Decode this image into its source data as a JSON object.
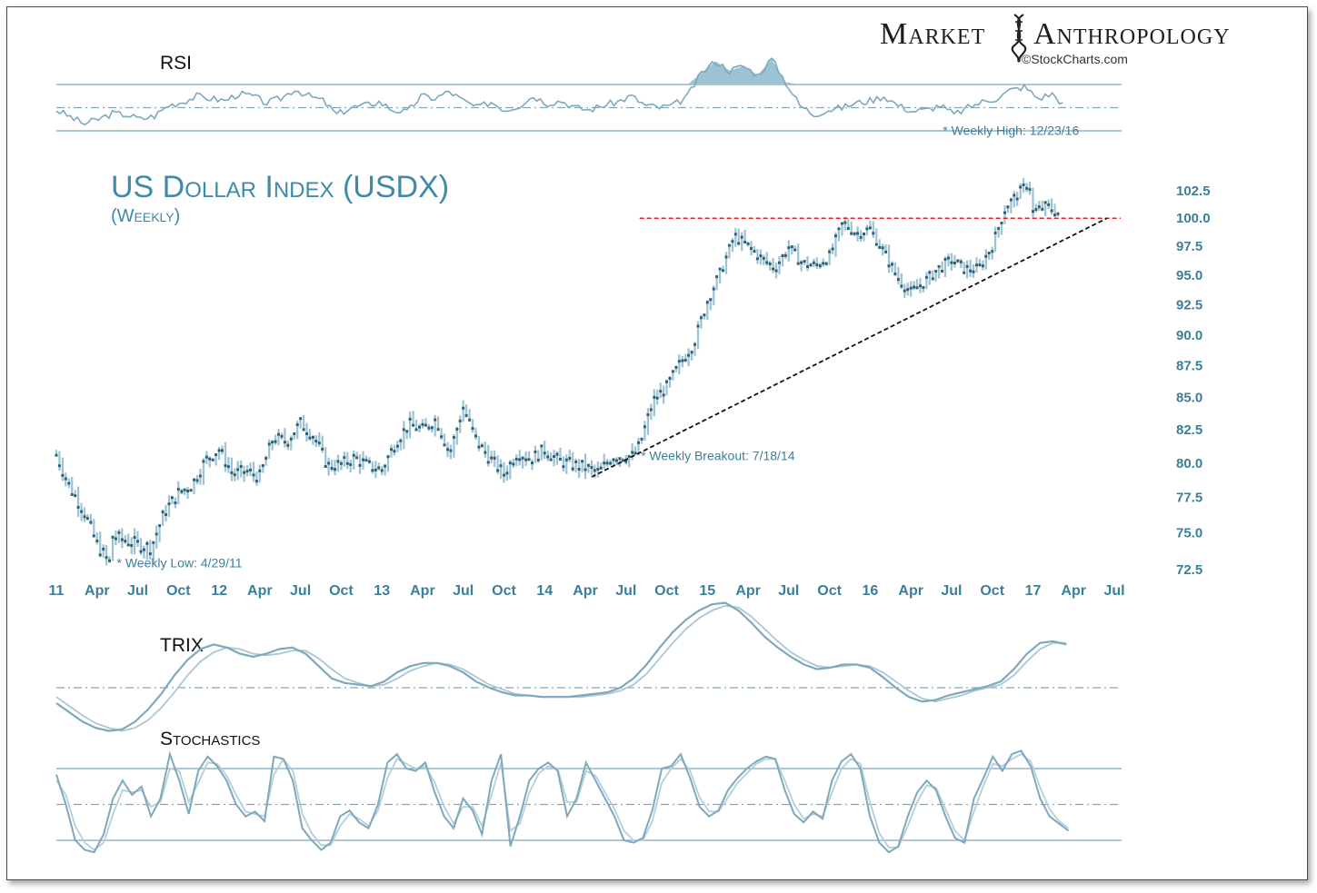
{
  "brand": {
    "left": "Market",
    "right": "Anthropology",
    "source": "©StockCharts.com",
    "icon": "dna-helix-icon"
  },
  "colors": {
    "line": "#7fa8bc",
    "accent": "#3a7f99",
    "resistance": "#e02020",
    "trendline": "#111111",
    "fill": "#9cc3d4"
  },
  "chart_data": [
    {
      "type": "line",
      "title": "US Dollar Index (USDX)",
      "subtitle": "(Weekly)",
      "y_ticks": [
        "102.5",
        "100.0",
        "97.5",
        "95.0",
        "92.5",
        "90.0",
        "87.5",
        "85.0",
        "82.5",
        "80.0",
        "77.5",
        "75.0",
        "72.5"
      ],
      "y_values": [
        102.5,
        100,
        97.5,
        95,
        92.5,
        90,
        87.5,
        85,
        82.5,
        80,
        77.5,
        75,
        72.5
      ],
      "ylim": [
        72.5,
        102.5
      ],
      "x_ticks": [
        "11",
        "Apr",
        "Jul",
        "Oct",
        "12",
        "Apr",
        "Jul",
        "Oct",
        "13",
        "Apr",
        "Jul",
        "Oct",
        "14",
        "Apr",
        "Jul",
        "Oct",
        "15",
        "Apr",
        "Jul",
        "Oct",
        "16",
        "Apr",
        "Jul",
        "Oct",
        "17",
        "Apr",
        "Jul"
      ],
      "x_tick_dates": [
        "2011-01",
        "2011-04",
        "2011-07",
        "2011-10",
        "2012-01",
        "2012-04",
        "2012-07",
        "2012-10",
        "2013-01",
        "2013-04",
        "2013-07",
        "2013-10",
        "2014-01",
        "2014-04",
        "2014-07",
        "2014-10",
        "2015-01",
        "2015-04",
        "2015-07",
        "2015-10",
        "2016-01",
        "2016-04",
        "2016-07",
        "2016-10",
        "2017-01",
        "2017-04",
        "2017-07"
      ],
      "series": [
        {
          "points": [
            [
              "2011-01",
              80.6
            ],
            [
              "2011-02",
              78.2
            ],
            [
              "2011-03",
              76.6
            ],
            [
              "2011-04",
              74.2
            ],
            [
              "2011-04-29",
              72.9
            ],
            [
              "2011-05",
              74.8
            ],
            [
              "2011-06",
              74.5
            ],
            [
              "2011-07",
              74.2
            ],
            [
              "2011-08",
              74.0
            ],
            [
              "2011-09",
              76.5
            ],
            [
              "2011-10",
              77.8
            ],
            [
              "2011-11",
              78.4
            ],
            [
              "2011-12",
              80.2
            ],
            [
              "2012-01",
              81.0
            ],
            [
              "2012-02",
              79.2
            ],
            [
              "2012-03",
              79.4
            ],
            [
              "2012-04",
              79.0
            ],
            [
              "2012-05",
              81.9
            ],
            [
              "2012-06",
              81.6
            ],
            [
              "2012-07",
              83.0
            ],
            [
              "2012-08",
              82.0
            ],
            [
              "2012-09",
              79.8
            ],
            [
              "2012-10",
              79.9
            ],
            [
              "2012-11",
              80.4
            ],
            [
              "2012-12",
              79.8
            ],
            [
              "2013-01",
              79.5
            ],
            [
              "2013-02",
              81.5
            ],
            [
              "2013-03",
              82.9
            ],
            [
              "2013-04",
              82.5
            ],
            [
              "2013-05",
              83.3
            ],
            [
              "2013-06",
              80.7
            ],
            [
              "2013-07",
              84.2
            ],
            [
              "2013-08",
              81.6
            ],
            [
              "2013-09",
              80.3
            ],
            [
              "2013-10",
              79.2
            ],
            [
              "2013-11",
              80.8
            ],
            [
              "2013-12",
              80.3
            ],
            [
              "2014-01",
              81.0
            ],
            [
              "2014-02",
              80.2
            ],
            [
              "2014-03",
              79.9
            ],
            [
              "2014-04",
              79.7
            ],
            [
              "2014-05",
              79.3
            ],
            [
              "2014-06",
              80.5
            ],
            [
              "2014-07-18",
              80.5
            ],
            [
              "2014-08",
              81.3
            ],
            [
              "2014-09",
              84.7
            ],
            [
              "2014-10",
              85.8
            ],
            [
              "2014-11",
              87.7
            ],
            [
              "2014-12",
              89.3
            ],
            [
              "2015-01",
              92.8
            ],
            [
              "2015-02",
              95.3
            ],
            [
              "2015-03",
              98.4
            ],
            [
              "2015-04",
              97.5
            ],
            [
              "2015-05",
              96.4
            ],
            [
              "2015-06",
              95.6
            ],
            [
              "2015-07",
              97.4
            ],
            [
              "2015-08",
              96.0
            ],
            [
              "2015-09",
              95.8
            ],
            [
              "2015-10",
              96.6
            ],
            [
              "2015-11",
              99.6
            ],
            [
              "2015-12",
              98.6
            ],
            [
              "2016-01",
              99.0
            ],
            [
              "2016-02",
              97.0
            ],
            [
              "2016-03",
              94.8
            ],
            [
              "2016-04",
              93.5
            ],
            [
              "2016-05",
              94.4
            ],
            [
              "2016-06",
              95.5
            ],
            [
              "2016-07",
              96.3
            ],
            [
              "2016-08",
              95.5
            ],
            [
              "2016-09",
              95.5
            ],
            [
              "2016-10",
              97.5
            ],
            [
              "2016-11",
              101.0
            ],
            [
              "2016-12",
              102.3
            ],
            [
              "2016-12-23",
              103.3
            ],
            [
              "2017-01",
              100.5
            ],
            [
              "2017-02",
              101.1
            ],
            [
              "2017-03",
              100.3
            ]
          ]
        }
      ],
      "resistance": {
        "value": 100.0,
        "from": "2014-08",
        "to": "2017-07-15"
      },
      "trendline": {
        "from": [
          "2014-04-15",
          79.0
        ],
        "to": [
          "2017-06-15",
          100.0
        ]
      },
      "annotations": [
        {
          "text": "Weekly Low: 4/29/11",
          "x": "2011-04-29",
          "y": 72.9
        },
        {
          "text": "Weekly Breakout: 7/18/14",
          "x": "2014-07-18",
          "y": 80.5
        },
        {
          "text": "Weekly High: 12/23/16",
          "x": "2016-12-23",
          "y": 103.3
        }
      ]
    },
    {
      "type": "area",
      "title": "RSI",
      "ylim": [
        0,
        100
      ],
      "lines": [
        30,
        50,
        70
      ],
      "series": [
        {
          "values": [
            48,
            42,
            36,
            40,
            45,
            44,
            40,
            43,
            52,
            55,
            60,
            58,
            56,
            62,
            60,
            54,
            58,
            66,
            60,
            56,
            44,
            50,
            52,
            55,
            48,
            46,
            60,
            58,
            64,
            56,
            50,
            55,
            48,
            52,
            60,
            54,
            56,
            50,
            48,
            52,
            55,
            60,
            52,
            50,
            52,
            60,
            80,
            90,
            82,
            86,
            78,
            92,
            72,
            52,
            44,
            48,
            50,
            54,
            56,
            60,
            52,
            47,
            48,
            52,
            44,
            50,
            55,
            58,
            65,
            68,
            58,
            62,
            50
          ]
        }
      ]
    },
    {
      "type": "line",
      "title": "TRIX",
      "ylim": [
        -0.5,
        0.6
      ],
      "zero_line": 0,
      "series": [
        {
          "values": [
            -0.1,
            -0.16,
            -0.22,
            -0.26,
            -0.28,
            -0.27,
            -0.22,
            -0.14,
            -0.04,
            0.08,
            0.18,
            0.25,
            0.28,
            0.26,
            0.22,
            0.2,
            0.22,
            0.25,
            0.26,
            0.22,
            0.14,
            0.06,
            0.03,
            0.02,
            0.01,
            0.04,
            0.1,
            0.14,
            0.16,
            0.16,
            0.14,
            0.1,
            0.04,
            0.0,
            -0.03,
            -0.05,
            -0.05,
            -0.06,
            -0.06,
            -0.06,
            -0.05,
            -0.04,
            -0.03,
            0.0,
            0.06,
            0.15,
            0.26,
            0.36,
            0.44,
            0.5,
            0.54,
            0.55,
            0.5,
            0.42,
            0.33,
            0.26,
            0.2,
            0.15,
            0.12,
            0.13,
            0.15,
            0.15,
            0.13,
            0.07,
            0.0,
            -0.06,
            -0.09,
            -0.08,
            -0.05,
            -0.03,
            -0.01,
            0.01,
            0.04,
            0.12,
            0.22,
            0.29,
            0.3,
            0.28
          ]
        },
        {
          "values": [
            -0.06,
            -0.12,
            -0.18,
            -0.23,
            -0.26,
            -0.28,
            -0.26,
            -0.21,
            -0.13,
            -0.03,
            0.08,
            0.17,
            0.23,
            0.26,
            0.25,
            0.22,
            0.21,
            0.22,
            0.24,
            0.24,
            0.19,
            0.12,
            0.06,
            0.03,
            0.01,
            0.02,
            0.06,
            0.11,
            0.14,
            0.16,
            0.15,
            0.12,
            0.07,
            0.02,
            -0.01,
            -0.04,
            -0.05,
            -0.06,
            -0.06,
            -0.06,
            -0.06,
            -0.05,
            -0.04,
            -0.02,
            0.02,
            0.09,
            0.19,
            0.29,
            0.38,
            0.45,
            0.5,
            0.53,
            0.52,
            0.46,
            0.38,
            0.3,
            0.23,
            0.18,
            0.14,
            0.13,
            0.14,
            0.15,
            0.14,
            0.1,
            0.04,
            -0.02,
            -0.07,
            -0.09,
            -0.07,
            -0.05,
            -0.02,
            0.0,
            0.02,
            0.08,
            0.17,
            0.25,
            0.29,
            0.29
          ]
        }
      ]
    },
    {
      "type": "line",
      "title": "Stochastics",
      "ylim": [
        0,
        100
      ],
      "lines": [
        20,
        50,
        80
      ],
      "series": [
        {
          "values": [
            75,
            50,
            20,
            12,
            10,
            25,
            55,
            70,
            58,
            65,
            40,
            55,
            92,
            70,
            42,
            78,
            90,
            82,
            70,
            50,
            40,
            44,
            36,
            90,
            88,
            70,
            30,
            20,
            12,
            18,
            40,
            45,
            35,
            30,
            50,
            85,
            92,
            80,
            78,
            85,
            60,
            40,
            30,
            55,
            45,
            25,
            70,
            92,
            15,
            40,
            70,
            80,
            85,
            78,
            40,
            55,
            85,
            70,
            55,
            40,
            20,
            18,
            22,
            45,
            80,
            82,
            92,
            72,
            48,
            40,
            45,
            62,
            72,
            80,
            86,
            90,
            88,
            62,
            42,
            35,
            44,
            38,
            70,
            86,
            92,
            80,
            40,
            18,
            10,
            15,
            40,
            60,
            70,
            62,
            40,
            22,
            18,
            55,
            72,
            90,
            78,
            92,
            95,
            82,
            55,
            40,
            34,
            28
          ]
        },
        {
          "values": [
            70,
            58,
            32,
            18,
            12,
            18,
            42,
            62,
            60,
            62,
            48,
            52,
            80,
            78,
            52,
            68,
            85,
            84,
            74,
            58,
            44,
            42,
            40,
            75,
            88,
            78,
            42,
            26,
            16,
            16,
            32,
            42,
            38,
            32,
            45,
            72,
            88,
            84,
            80,
            82,
            68,
            48,
            34,
            48,
            48,
            32,
            58,
            85,
            28,
            34,
            60,
            76,
            82,
            80,
            52,
            52,
            78,
            74,
            60,
            46,
            28,
            20,
            20,
            36,
            68,
            80,
            88,
            78,
            56,
            44,
            44,
            56,
            68,
            76,
            84,
            88,
            88,
            70,
            50,
            38,
            42,
            40,
            60,
            80,
            88,
            84,
            52,
            26,
            14,
            14,
            32,
            52,
            66,
            64,
            46,
            28,
            20,
            44,
            66,
            84,
            82,
            88,
            92,
            86,
            64,
            46,
            36,
            30
          ]
        }
      ]
    }
  ]
}
